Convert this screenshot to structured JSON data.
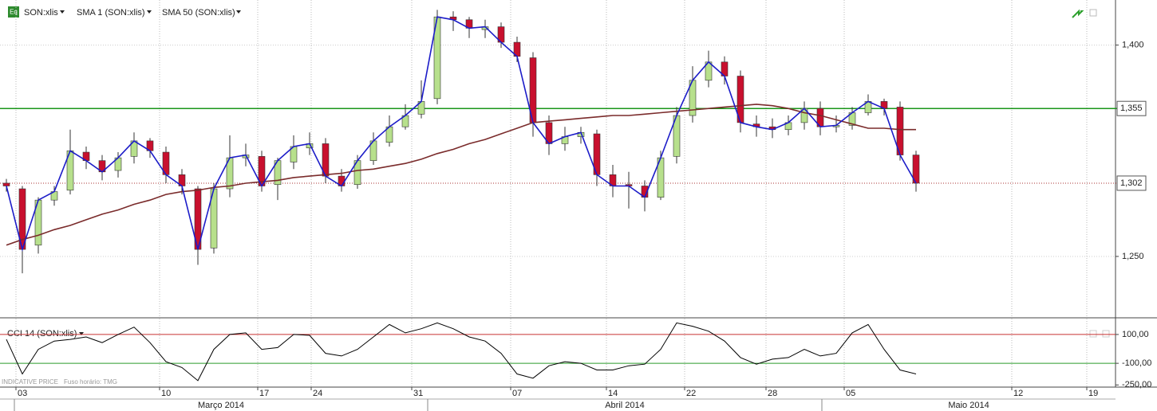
{
  "chart_data": [
    {
      "type": "candlestick",
      "icon_label": "Eq",
      "title": "SON:xlis",
      "up_color": "#b7e08c",
      "down_color": "#c8102e",
      "open": [
        1302,
        1298,
        1258,
        1290,
        1297,
        1324,
        1318,
        1311,
        1321,
        1332,
        1324,
        1308,
        1298,
        1256,
        1298,
        1320,
        1321,
        1301,
        1317,
        1327,
        1330,
        1307,
        1301,
        1318,
        1331,
        1342,
        1351,
        1362,
        1420,
        1418,
        1411,
        1413,
        1402,
        1391,
        1345,
        1330,
        1335,
        1337,
        1308,
        1301,
        1300,
        1292,
        1321,
        1350,
        1375,
        1388,
        1378,
        1344,
        1342,
        1340,
        1345,
        1355,
        1342,
        1343,
        1352,
        1360,
        1356,
        1322
      ],
      "high": [
        1305,
        1300,
        1292,
        1300,
        1340,
        1328,
        1322,
        1324,
        1338,
        1334,
        1328,
        1312,
        1300,
        1302,
        1336,
        1330,
        1325,
        1320,
        1336,
        1338,
        1334,
        1312,
        1322,
        1338,
        1350,
        1358,
        1375,
        1425,
        1424,
        1420,
        1418,
        1416,
        1406,
        1395,
        1350,
        1342,
        1342,
        1340,
        1315,
        1310,
        1304,
        1325,
        1356,
        1385,
        1396,
        1392,
        1382,
        1350,
        1348,
        1350,
        1360,
        1360,
        1350,
        1356,
        1365,
        1362,
        1360,
        1325
      ],
      "low": [
        1296,
        1238,
        1252,
        1286,
        1294,
        1312,
        1304,
        1306,
        1316,
        1320,
        1302,
        1294,
        1244,
        1252,
        1292,
        1314,
        1296,
        1290,
        1312,
        1322,
        1302,
        1296,
        1298,
        1315,
        1328,
        1340,
        1348,
        1358,
        1410,
        1405,
        1405,
        1398,
        1388,
        1335,
        1322,
        1325,
        1330,
        1300,
        1292,
        1284,
        1282,
        1290,
        1316,
        1345,
        1370,
        1372,
        1338,
        1335,
        1334,
        1336,
        1340,
        1336,
        1338,
        1340,
        1350,
        1350,
        1318,
        1296
      ],
      "close": [
        1300,
        1255,
        1290,
        1296,
        1325,
        1318,
        1310,
        1320,
        1332,
        1325,
        1308,
        1300,
        1255,
        1298,
        1320,
        1322,
        1300,
        1318,
        1328,
        1330,
        1307,
        1300,
        1318,
        1332,
        1342,
        1350,
        1360,
        1420,
        1418,
        1412,
        1413,
        1402,
        1392,
        1345,
        1330,
        1335,
        1338,
        1308,
        1300,
        1300,
        1292,
        1320,
        1350,
        1375,
        1388,
        1378,
        1345,
        1342,
        1340,
        1345,
        1355,
        1342,
        1343,
        1352,
        1360,
        1355,
        1322,
        1302
      ],
      "series": [
        {
          "name": "SMA 1 (SON:xlis)",
          "color": "#1c1cc8",
          "values": [
            1300,
            1255,
            1290,
            1296,
            1325,
            1318,
            1310,
            1320,
            1332,
            1325,
            1308,
            1300,
            1255,
            1298,
            1320,
            1322,
            1300,
            1318,
            1328,
            1330,
            1307,
            1300,
            1318,
            1332,
            1342,
            1350,
            1360,
            1420,
            1418,
            1412,
            1413,
            1402,
            1392,
            1345,
            1330,
            1335,
            1338,
            1308,
            1300,
            1300,
            1292,
            1320,
            1350,
            1375,
            1388,
            1378,
            1345,
            1342,
            1340,
            1345,
            1355,
            1342,
            1343,
            1352,
            1360,
            1355,
            1322,
            1302
          ]
        },
        {
          "name": "SMA 50 (SON:xlis)",
          "color": "#7a2b2b",
          "values": [
            1258,
            1262,
            1265,
            1269,
            1272,
            1276,
            1280,
            1283,
            1287,
            1290,
            1294,
            1296,
            1297,
            1299,
            1300,
            1302,
            1303,
            1304,
            1306,
            1307,
            1308,
            1309,
            1311,
            1312,
            1314,
            1316,
            1319,
            1323,
            1326,
            1330,
            1333,
            1337,
            1341,
            1345,
            1346,
            1347,
            1348,
            1349,
            1350,
            1350,
            1351,
            1352,
            1353,
            1354,
            1355,
            1356,
            1357,
            1358,
            1357,
            1355,
            1352,
            1350,
            1347,
            1344,
            1341,
            1341,
            1340,
            1340
          ]
        }
      ],
      "xlim": [
        -0.4,
        69.5
      ],
      "ylim": [
        1207,
        1432
      ],
      "yticks": [
        {
          "value": 1400,
          "label": "1,400"
        },
        {
          "value": 1250,
          "label": "1,250"
        }
      ],
      "levels": [
        {
          "value": 1355,
          "label": "1,355",
          "color": "#1a961a",
          "style": "solid"
        },
        {
          "value": 1302,
          "label": "1,302",
          "color": "#a83232",
          "style": "dotted"
        }
      ]
    },
    {
      "type": "line",
      "series": [
        {
          "name": "CCI 14 (SON:xlis)",
          "color": "#000000",
          "values": [
            66,
            -174,
            -3,
            54,
            66,
            83,
            43,
            100,
            151,
            43,
            -89,
            -129,
            -220,
            -3,
            100,
            111,
            -3,
            9,
            100,
            94,
            -31,
            -49,
            -3,
            83,
            169,
            111,
            140,
            180,
            140,
            83,
            54,
            -31,
            -174,
            -203,
            -117,
            -89,
            -100,
            -146,
            -146,
            -117,
            -106,
            -3,
            180,
            157,
            123,
            54,
            -60,
            -106,
            -71,
            -60,
            -3,
            -49,
            -31,
            111,
            169,
            -3,
            -146,
            -174
          ]
        }
      ],
      "xlim": [
        -0.4,
        69.5
      ],
      "ylim": [
        -265,
        210
      ],
      "yticks": [
        {
          "value": 100,
          "label": "100,00"
        },
        {
          "value": -100,
          "label": "-100,00"
        },
        {
          "value": -250,
          "label": "-250,00"
        }
      ],
      "hlines": [
        {
          "value": 100,
          "color": "#c83030"
        },
        {
          "value": -100,
          "color": "#2a9a2a"
        }
      ],
      "xticks": [
        {
          "value": 0.6,
          "label": "03"
        },
        {
          "value": 9.6,
          "label": "10"
        },
        {
          "value": 15.75,
          "label": "17"
        },
        {
          "value": 19.1,
          "label": "24"
        },
        {
          "value": 25.4,
          "label": "31"
        },
        {
          "value": 31.6,
          "label": "07"
        },
        {
          "value": 37.6,
          "label": "14"
        },
        {
          "value": 42.5,
          "label": "22"
        },
        {
          "value": 47.6,
          "label": "28"
        },
        {
          "value": 52.5,
          "label": "05"
        },
        {
          "value": 63,
          "label": "12"
        },
        {
          "value": 67.7,
          "label": "19"
        }
      ],
      "months": [
        {
          "start": 0.5,
          "label": "Março 2014"
        },
        {
          "start": 26.4,
          "label": "Abril 2014"
        },
        {
          "start": 51.1,
          "label": "Maio 2014"
        }
      ],
      "notes": [
        "INDICATIVE PRICE",
        "Fuso horário: TMG"
      ]
    }
  ]
}
